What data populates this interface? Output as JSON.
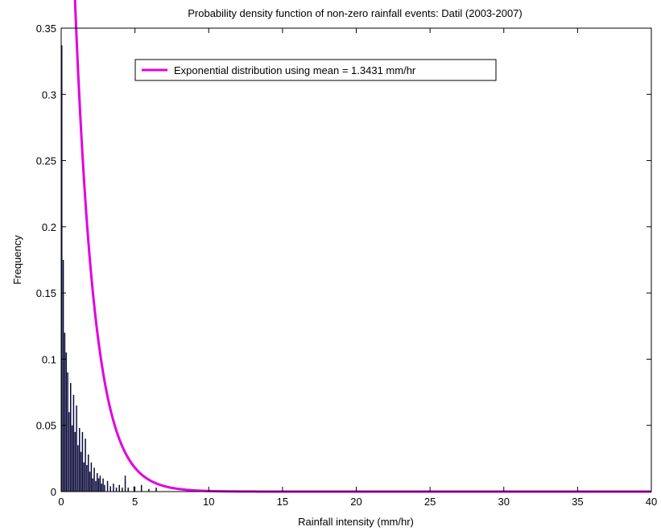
{
  "chart_data": {
    "type": "bar",
    "title": "Probability density function of non-zero rainfall events: Datil (2003-2007)",
    "xlabel": "Rainfall intensity (mm/hr)",
    "ylabel": "Frequency",
    "xlim": [
      0,
      40
    ],
    "ylim": [
      0,
      0.35
    ],
    "xticks": [
      "0",
      "5",
      "10",
      "15",
      "20",
      "25",
      "30",
      "35",
      "40"
    ],
    "yticks": [
      "0",
      "0.05",
      "0.1",
      "0.15",
      "0.2",
      "0.25",
      "0.3",
      "0.35"
    ],
    "grid": false,
    "legend_position": "top-left",
    "histogram": {
      "x": [
        0.1,
        0.2,
        0.3,
        0.4,
        0.5,
        0.6,
        0.7,
        0.8,
        0.9,
        1.0,
        1.1,
        1.2,
        1.3,
        1.4,
        1.5,
        1.6,
        1.7,
        1.8,
        1.9,
        2.0,
        2.1,
        2.2,
        2.3,
        2.4,
        2.5,
        2.6,
        2.7,
        2.8,
        2.9,
        3.0,
        3.2,
        3.4,
        3.6,
        3.8,
        4.0,
        4.2,
        4.4,
        4.6,
        5.0,
        5.5,
        6.0,
        6.5
      ],
      "values": [
        0.337,
        0.175,
        0.12,
        0.105,
        0.09,
        0.06,
        0.082,
        0.05,
        0.073,
        0.045,
        0.065,
        0.035,
        0.048,
        0.03,
        0.045,
        0.022,
        0.04,
        0.02,
        0.028,
        0.015,
        0.022,
        0.01,
        0.018,
        0.008,
        0.014,
        0.01,
        0.012,
        0.006,
        0.01,
        0.005,
        0.008,
        0.004,
        0.006,
        0.003,
        0.005,
        0.003,
        0.012,
        0.003,
        0.004,
        0.005,
        0.002,
        0.003
      ]
    },
    "series": [
      {
        "name": "Exponential distribution using mean = 1.3431 mm/hr",
        "type": "line",
        "mean": 1.3431,
        "color": "#e000e0"
      }
    ],
    "bar_color": "#0a0a3c",
    "axis_color": "#000000"
  }
}
